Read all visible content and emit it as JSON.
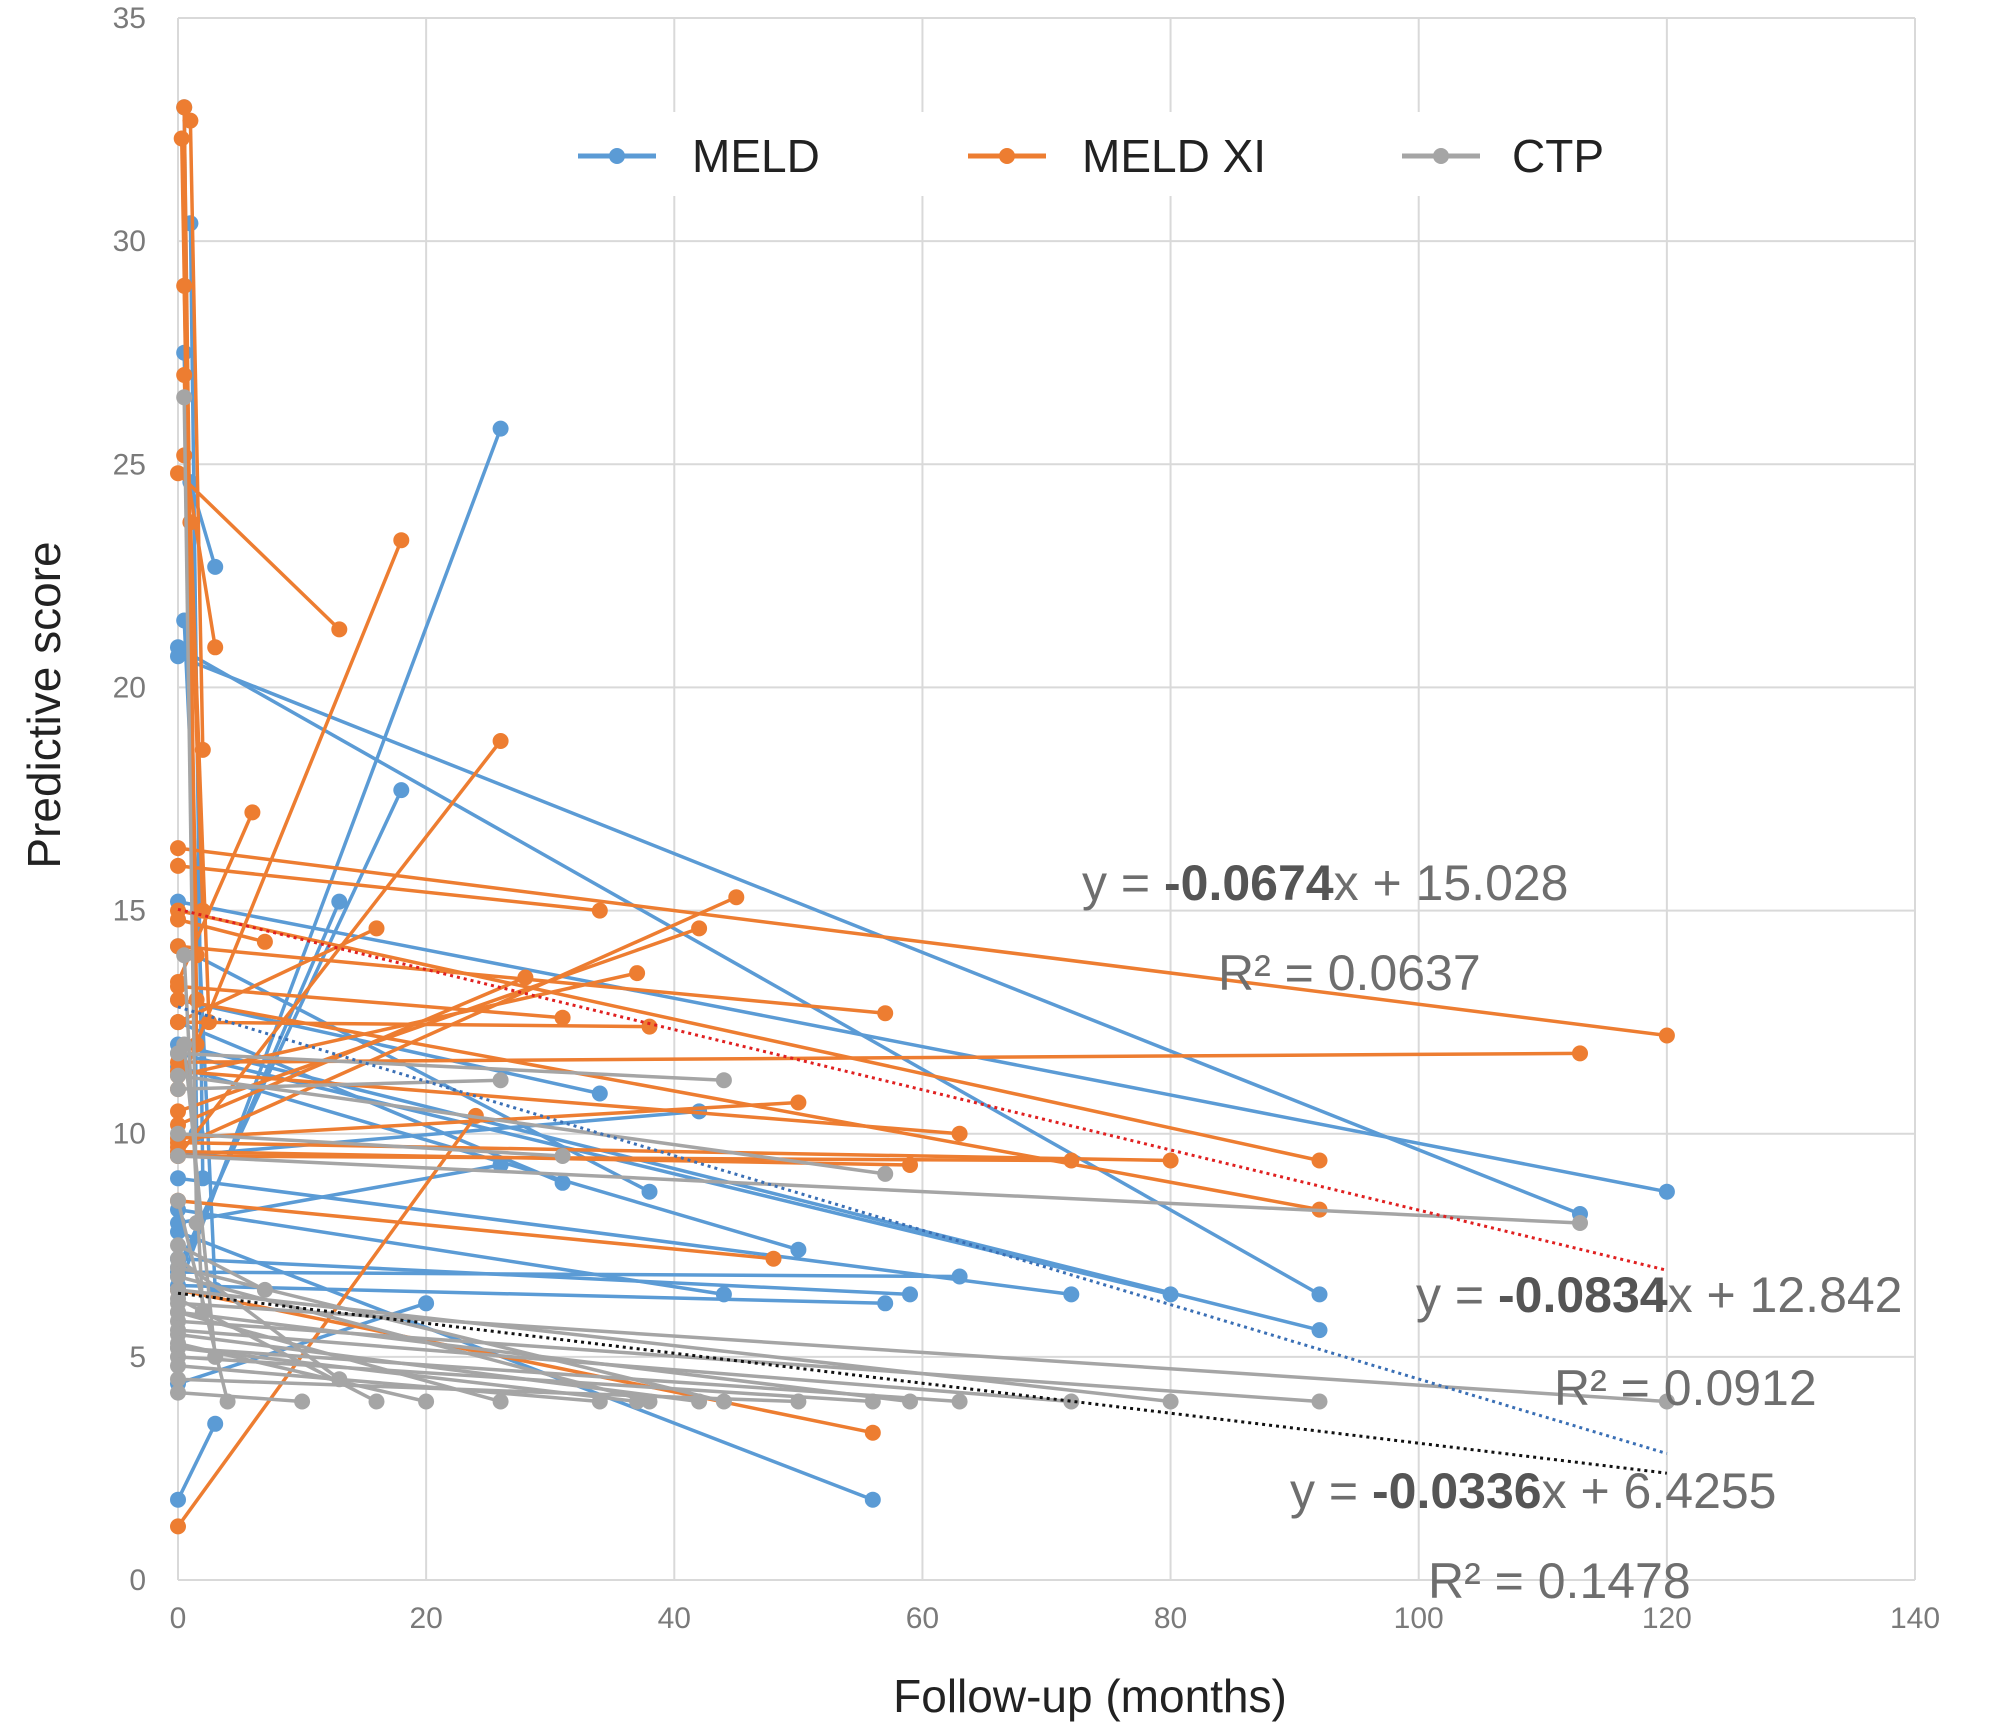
{
  "chart_data": {
    "type": "line",
    "title": "",
    "xlabel": "Follow-up (months)",
    "ylabel": "Predictive score",
    "xlim": [
      0,
      140
    ],
    "ylim": [
      0,
      35
    ],
    "x_ticks": [
      "0",
      "20",
      "40",
      "60",
      "80",
      "100",
      "120",
      "140"
    ],
    "y_ticks": [
      "0",
      "5",
      "10",
      "15",
      "20",
      "25",
      "30",
      "35"
    ],
    "grid": true,
    "legend_position": "top",
    "colors": {
      "MELD": "#5b9bd5",
      "MELD XI": "#ed7d31",
      "CTP": "#a5a5a5",
      "trend_meld": "#3a6fb5",
      "trend_meld_xi": "#e02020",
      "trend_ctp": "#111111"
    },
    "legend": [
      {
        "name": "MELD"
      },
      {
        "name": "MELD XI"
      },
      {
        "name": "CTP"
      }
    ],
    "series": [
      {
        "name": "MELD",
        "segments": [
          [
            [
              0,
              20.9
            ],
            [
              92,
              6.4
            ]
          ],
          [
            [
              0,
              20.7
            ],
            [
              113,
              8.2
            ]
          ],
          [
            [
              0,
              15.2
            ],
            [
              120,
              8.7
            ]
          ],
          [
            [
              0,
              12.0
            ],
            [
              92,
              5.6
            ]
          ],
          [
            [
              0,
              11.8
            ],
            [
              80,
              6.4
            ]
          ],
          [
            [
              0,
              9.0
            ],
            [
              72,
              6.4
            ]
          ],
          [
            [
              0,
              6.9
            ],
            [
              63,
              6.8
            ]
          ],
          [
            [
              0,
              6.6
            ],
            [
              57,
              6.2
            ]
          ],
          [
            [
              0,
              7.2
            ],
            [
              59,
              6.4
            ]
          ],
          [
            [
              0,
              7.8
            ],
            [
              56,
              1.8
            ]
          ],
          [
            [
              0,
              14.2
            ],
            [
              38,
              8.7
            ]
          ],
          [
            [
              0,
              13.0
            ],
            [
              34,
              10.9
            ]
          ],
          [
            [
              0,
              12.5
            ],
            [
              31,
              8.9
            ]
          ],
          [
            [
              0,
              11.5
            ],
            [
              50,
              7.4
            ]
          ],
          [
            [
              0,
              8.3
            ],
            [
              44,
              6.4
            ]
          ],
          [
            [
              0,
              6.5
            ],
            [
              26,
              25.8
            ]
          ],
          [
            [
              0,
              7.0
            ],
            [
              18,
              17.7
            ]
          ],
          [
            [
              0,
              6.8
            ],
            [
              13,
              15.2
            ]
          ],
          [
            [
              0,
              1.8
            ],
            [
              3,
              3.5
            ]
          ],
          [
            [
              0,
              9.5
            ],
            [
              42,
              10.5
            ]
          ],
          [
            [
              0,
              8.0
            ],
            [
              26,
              9.3
            ]
          ],
          [
            [
              0,
              4.4
            ],
            [
              20,
              6.2
            ]
          ],
          [
            [
              1,
              30.4
            ],
            [
              2,
              9.0
            ]
          ],
          [
            [
              0.5,
              33.0
            ],
            [
              1.5,
              10.0
            ]
          ],
          [
            [
              0.5,
              27.5
            ],
            [
              1.5,
              12.0
            ]
          ],
          [
            [
              1,
              24.6
            ],
            [
              3,
              22.7
            ]
          ],
          [
            [
              0.5,
              21.5
            ],
            [
              3,
              6.5
            ]
          ]
        ]
      },
      {
        "name": "MELD XI",
        "segments": [
          [
            [
              0,
              24.8
            ],
            [
              13,
              21.3
            ]
          ],
          [
            [
              0,
              16.4
            ],
            [
              120,
              12.2
            ]
          ],
          [
            [
              0,
              15.0
            ],
            [
              92,
              9.4
            ]
          ],
          [
            [
              0,
              13.0
            ],
            [
              92,
              8.3
            ]
          ],
          [
            [
              0,
              11.6
            ],
            [
              113,
              11.8
            ]
          ],
          [
            [
              0,
              16.0
            ],
            [
              34,
              15.0
            ]
          ],
          [
            [
              0,
              14.2
            ],
            [
              57,
              12.7
            ]
          ],
          [
            [
              0,
              11.4
            ],
            [
              63,
              10.0
            ]
          ],
          [
            [
              0,
              9.8
            ],
            [
              80,
              9.4
            ]
          ],
          [
            [
              0,
              9.5
            ],
            [
              72,
              9.4
            ]
          ],
          [
            [
              0,
              8.5
            ],
            [
              48,
              7.2
            ]
          ],
          [
            [
              0,
              9.6
            ],
            [
              59,
              9.3
            ]
          ],
          [
            [
              0,
              6.5
            ],
            [
              56,
              3.3
            ]
          ],
          [
            [
              0,
              1.2
            ],
            [
              24,
              10.4
            ]
          ],
          [
            [
              0,
              9.7
            ],
            [
              45,
              15.3
            ]
          ],
          [
            [
              0,
              10.5
            ],
            [
              42,
              14.6
            ]
          ],
          [
            [
              0,
              12.5
            ],
            [
              38,
              12.4
            ]
          ],
          [
            [
              0,
              11.3
            ],
            [
              37,
              13.6
            ]
          ],
          [
            [
              0,
              13.3
            ],
            [
              31,
              12.6
            ]
          ],
          [
            [
              0,
              9.5
            ],
            [
              26,
              18.8
            ]
          ],
          [
            [
              0,
              10.2
            ],
            [
              28,
              13.5
            ]
          ],
          [
            [
              0,
              11.0
            ],
            [
              18,
              23.3
            ]
          ],
          [
            [
              0,
              12.5
            ],
            [
              16,
              14.6
            ]
          ],
          [
            [
              0,
              13.4
            ],
            [
              6,
              17.2
            ]
          ],
          [
            [
              0,
              14.8
            ],
            [
              7,
              14.3
            ]
          ],
          [
            [
              0,
              9.9
            ],
            [
              50,
              10.7
            ]
          ],
          [
            [
              0.5,
              33.0
            ],
            [
              1.5,
              12.0
            ]
          ],
          [
            [
              0.3,
              32.3
            ],
            [
              1.5,
              14.0
            ]
          ],
          [
            [
              1,
              32.7
            ],
            [
              2,
              18.6
            ]
          ],
          [
            [
              0.5,
              29.0
            ],
            [
              1.5,
              13.0
            ]
          ],
          [
            [
              0.5,
              27.0
            ],
            [
              2,
              15.0
            ]
          ],
          [
            [
              0.5,
              25.2
            ],
            [
              3,
              20.9
            ]
          ],
          [
            [
              1,
              23.7
            ],
            [
              2.5,
              12.5
            ]
          ]
        ]
      },
      {
        "name": "CTP",
        "segments": [
          [
            [
              0,
              9.5
            ],
            [
              113,
              8.0
            ]
          ],
          [
            [
              0,
              6.2
            ],
            [
              120,
              4.0
            ]
          ],
          [
            [
              0,
              5.8
            ],
            [
              92,
              4.0
            ]
          ],
          [
            [
              0,
              6.5
            ],
            [
              80,
              4.0
            ]
          ],
          [
            [
              0,
              5.6
            ],
            [
              72,
              4.0
            ]
          ],
          [
            [
              0,
              5.2
            ],
            [
              63,
              4.0
            ]
          ],
          [
            [
              0,
              11.3
            ],
            [
              57,
              9.1
            ]
          ],
          [
            [
              0,
              6.0
            ],
            [
              59,
              4.0
            ]
          ],
          [
            [
              0,
              5.0
            ],
            [
              56,
              4.0
            ]
          ],
          [
            [
              0,
              4.5
            ],
            [
              50,
              4.0
            ]
          ],
          [
            [
              0,
              11.8
            ],
            [
              44,
              11.2
            ]
          ],
          [
            [
              0,
              7.0
            ],
            [
              44,
              4.0
            ]
          ],
          [
            [
              0,
              5.5
            ],
            [
              42,
              4.0
            ]
          ],
          [
            [
              0,
              6.8
            ],
            [
              38,
              4.0
            ]
          ],
          [
            [
              0,
              5.2
            ],
            [
              37,
              4.0
            ]
          ],
          [
            [
              0,
              4.8
            ],
            [
              34,
              4.0
            ]
          ],
          [
            [
              0,
              10.0
            ],
            [
              31,
              9.5
            ]
          ],
          [
            [
              0,
              11.0
            ],
            [
              26,
              11.2
            ]
          ],
          [
            [
              0,
              6.0
            ],
            [
              26,
              4.0
            ]
          ],
          [
            [
              0,
              5.3
            ],
            [
              20,
              4.0
            ]
          ],
          [
            [
              0,
              6.3
            ],
            [
              16,
              4.0
            ]
          ],
          [
            [
              0,
              7.2
            ],
            [
              13,
              4.5
            ]
          ],
          [
            [
              0,
              4.2
            ],
            [
              10,
              4.0
            ]
          ],
          [
            [
              0,
              7.5
            ],
            [
              7,
              6.5
            ]
          ],
          [
            [
              0,
              8.5
            ],
            [
              4,
              4.0
            ]
          ],
          [
            [
              0.5,
              26.5
            ],
            [
              1.5,
              8.0
            ]
          ],
          [
            [
              0.5,
              14.0
            ],
            [
              2,
              6.0
            ]
          ],
          [
            [
              0.5,
              12.0
            ],
            [
              3,
              5.0
            ]
          ]
        ]
      }
    ],
    "trendlines": [
      {
        "series": "MELD XI",
        "slope": -0.0674,
        "intercept": 15.028,
        "x_range": [
          0,
          120
        ],
        "equation": {
          "prefix": "y  =  ",
          "bold": "-0.0674",
          "suffix": "x  +  15.028"
        },
        "r2": "R²  =  0.0637"
      },
      {
        "series": "MELD",
        "slope": -0.0834,
        "intercept": 12.842,
        "x_range": [
          0,
          120
        ],
        "equation": {
          "prefix": "y  =  ",
          "bold": "-0.0834",
          "suffix": "x  +  12.842"
        },
        "r2": "R²  =  0.0912"
      },
      {
        "series": "CTP",
        "slope": -0.0336,
        "intercept": 6.4255,
        "x_range": [
          0,
          120
        ],
        "equation": {
          "prefix": "y  =  ",
          "bold": "-0.0336",
          "suffix": "x  +  6.4255"
        },
        "r2": "R²  =  0.1478"
      }
    ]
  }
}
